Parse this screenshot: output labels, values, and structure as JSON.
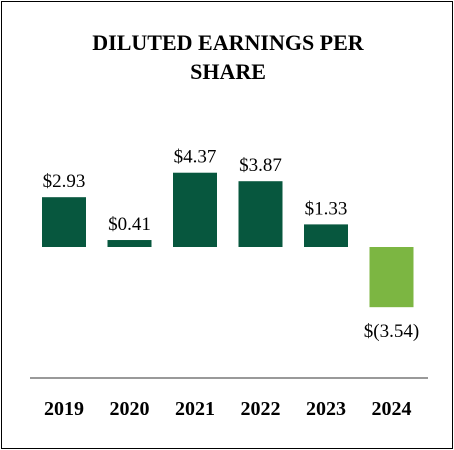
{
  "chart_data": {
    "type": "bar",
    "title_lines": [
      "DILUTED EARNINGS PER",
      "SHARE"
    ],
    "categories": [
      "2019",
      "2020",
      "2021",
      "2022",
      "2023",
      "2024"
    ],
    "values": [
      2.93,
      0.41,
      4.37,
      3.87,
      1.33,
      -3.54
    ],
    "labels": [
      "$2.93",
      "$0.41",
      "$4.37",
      "$3.87",
      "$1.33",
      "$(3.54)"
    ],
    "xlabel": "",
    "ylabel": "",
    "grid": false,
    "legend": "none",
    "colors": {
      "positive": "#07573e",
      "negative": "#7cb642",
      "axis": "#999999",
      "text": "#000000"
    }
  }
}
